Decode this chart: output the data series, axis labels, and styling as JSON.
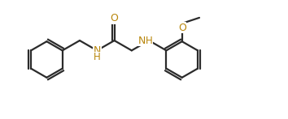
{
  "bg_color": "#ffffff",
  "bond_color": "#2b2b2b",
  "N_color": "#b8860b",
  "O_color": "#b8860b",
  "lw": 1.6,
  "fs": 9.0,
  "figsize": [
    3.54,
    1.47
  ],
  "dpi": 100,
  "xlim": [
    -0.3,
    10.5
  ],
  "ylim": [
    0.2,
    4.5
  ]
}
